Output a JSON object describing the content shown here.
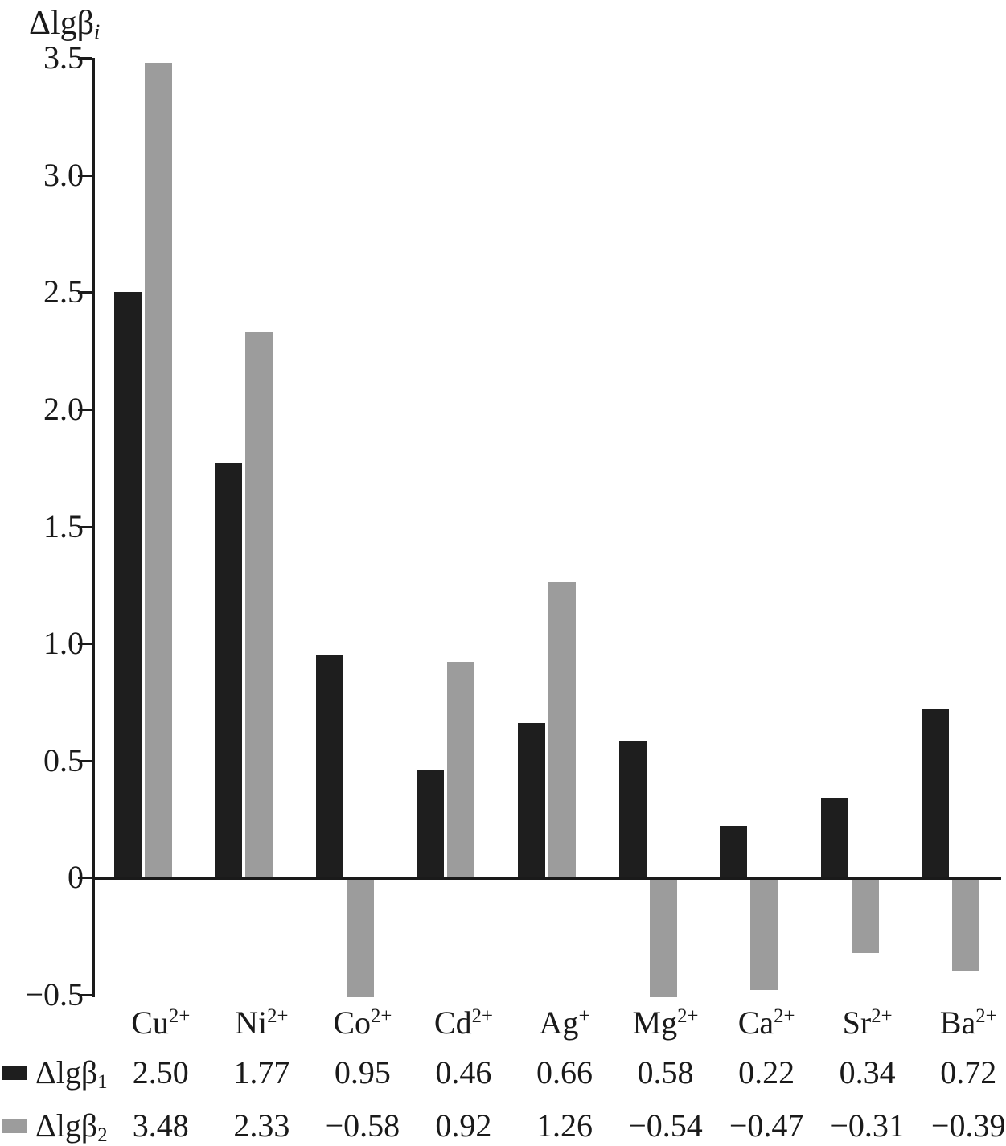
{
  "figure": {
    "y_axis_title_base": "Δlgβ",
    "y_axis_title_sub": "i"
  },
  "chart_data": {
    "type": "bar",
    "title": "",
    "ylabel": "Δlgβ_i",
    "xlabel": "",
    "grid": false,
    "legend_position": "bottom-left-table",
    "ylim": [
      -0.5,
      3.5
    ],
    "y_tick_values": [
      3.5,
      3.0,
      2.5,
      2.0,
      1.5,
      1.0,
      0.5,
      0,
      -0.5
    ],
    "y_tick_labels": [
      "3.5",
      "3.0",
      "2.5",
      "2.0",
      "1.5",
      "1.0",
      "0.5",
      "0",
      "−0.5"
    ],
    "categories": [
      {
        "base": "Cu",
        "sup": "2+"
      },
      {
        "base": "Ni",
        "sup": "2+"
      },
      {
        "base": "Co",
        "sup": "2+"
      },
      {
        "base": "Cd",
        "sup": "2+"
      },
      {
        "base": "Ag",
        "sup": "+"
      },
      {
        "base": "Mg",
        "sup": "2+"
      },
      {
        "base": "Ca",
        "sup": "2+"
      },
      {
        "base": "Sr",
        "sup": "2+"
      },
      {
        "base": "Ba",
        "sup": "2+"
      }
    ],
    "series": [
      {
        "name_base": "Δlgβ",
        "name_sub": "1",
        "color": "#1e1e1e",
        "values": [
          2.5,
          1.77,
          0.95,
          0.46,
          0.66,
          0.58,
          0.22,
          0.34,
          0.72
        ],
        "value_labels": [
          "2.50",
          "1.77",
          "0.95",
          "0.46",
          "0.66",
          "0.58",
          "0.22",
          "0.34",
          "0.72"
        ]
      },
      {
        "name_base": "Δlgβ",
        "name_sub": "2",
        "color": "#9c9c9c",
        "values": [
          3.48,
          2.33,
          -0.58,
          0.92,
          1.26,
          -0.54,
          -0.47,
          -0.31,
          -0.39
        ],
        "value_labels": [
          "3.48",
          "2.33",
          "−0.58",
          "0.92",
          "1.26",
          "−0.54",
          "−0.47",
          "−0.31",
          "−0.39"
        ]
      }
    ]
  }
}
